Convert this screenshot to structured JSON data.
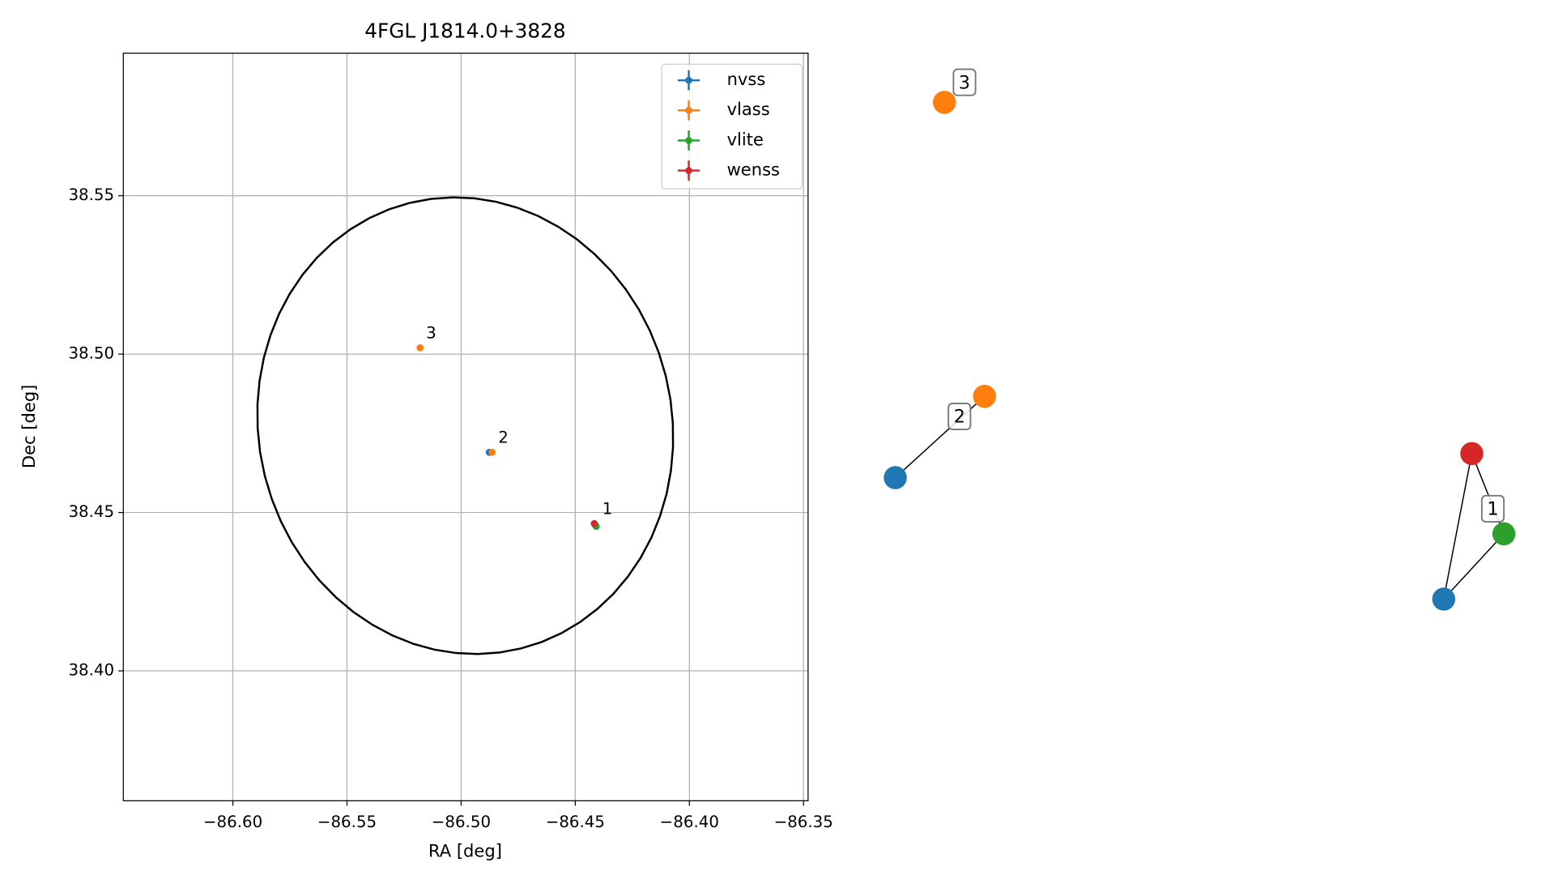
{
  "chart_data": {
    "type": "scatter",
    "title": "4FGL J1814.0+3828",
    "x_label": "RA [deg]",
    "y_label": "Dec [deg]",
    "xlim": [
      -86.648,
      -86.348
    ],
    "ylim": [
      38.359,
      38.595
    ],
    "xticks": [
      {
        "value": -86.6,
        "label": "−86.60"
      },
      {
        "value": -86.55,
        "label": "−86.55"
      },
      {
        "value": -86.5,
        "label": "−86.50"
      },
      {
        "value": -86.45,
        "label": "−86.45"
      },
      {
        "value": -86.4,
        "label": "−86.40"
      },
      {
        "value": -86.35,
        "label": "−86.35"
      }
    ],
    "yticks": [
      {
        "value": 38.4,
        "label": "38.40"
      },
      {
        "value": 38.45,
        "label": "38.45"
      },
      {
        "value": 38.5,
        "label": "38.50"
      },
      {
        "value": 38.55,
        "label": "38.55"
      }
    ],
    "grid": true,
    "legend": "upper right",
    "series": [
      {
        "name": "nvss",
        "color": "#1f77b4",
        "x": [
          -86.4412,
          -86.4877
        ],
        "values": [
          38.446,
          38.469
        ]
      },
      {
        "name": "vlass",
        "color": "#ff7f0e",
        "x": [
          -86.4864,
          -86.518
        ],
        "values": [
          38.469,
          38.502
        ]
      },
      {
        "name": "vlite",
        "color": "#2ca02c",
        "x": [
          -86.4408
        ],
        "values": [
          38.4456
        ]
      },
      {
        "name": "wenss",
        "color": "#d62728",
        "x": [
          -86.4417
        ],
        "values": [
          38.4465
        ]
      }
    ],
    "annotations": [
      {
        "text": "1",
        "x": -86.4408,
        "y": 38.4465
      },
      {
        "text": "2",
        "x": -86.4864,
        "y": 38.469
      },
      {
        "text": "3",
        "x": -86.518,
        "y": 38.502
      }
    ],
    "ellipse": {
      "x": -86.4982,
      "y": 38.4774,
      "x_radius": 0.0905,
      "y_radius": 0.0725,
      "angle": -14,
      "color": "#000000"
    }
  },
  "graph": {
    "groups": [
      {
        "label": "1",
        "nodes": [
          "#d62728",
          "#2ca02c",
          "#1f77b4"
        ]
      },
      {
        "label": "2",
        "nodes": [
          "#1f77b4",
          "#ff7f0e"
        ]
      },
      {
        "label": "3",
        "nodes": [
          "#ff7f0e"
        ]
      }
    ]
  }
}
